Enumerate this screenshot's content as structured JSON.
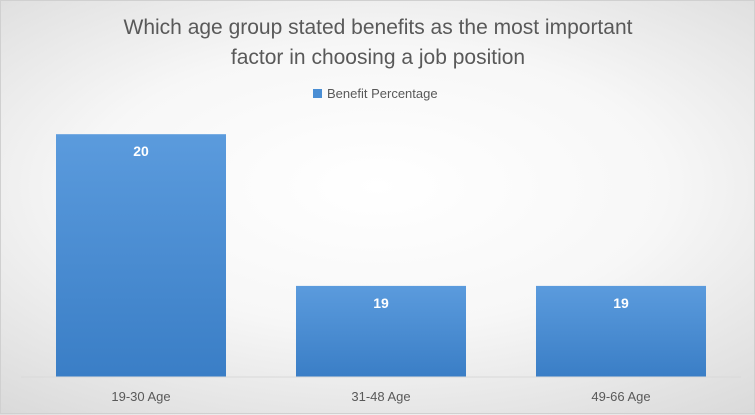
{
  "chart_data": {
    "type": "bar",
    "title_lines": [
      "Which age group stated benefits as the most important",
      "factor in choosing a job position"
    ],
    "categories": [
      "19-30 Age",
      "31-48 Age",
      "49-66 Age"
    ],
    "series": [
      {
        "name": "Benefit Percentage",
        "values": [
          20,
          19,
          19
        ],
        "color": "#4a8ed4"
      }
    ],
    "data_labels": [
      "20",
      "19",
      "19"
    ],
    "ylim": [
      18.4,
      20.1
    ],
    "grid": false,
    "legend_position": "top-center"
  }
}
